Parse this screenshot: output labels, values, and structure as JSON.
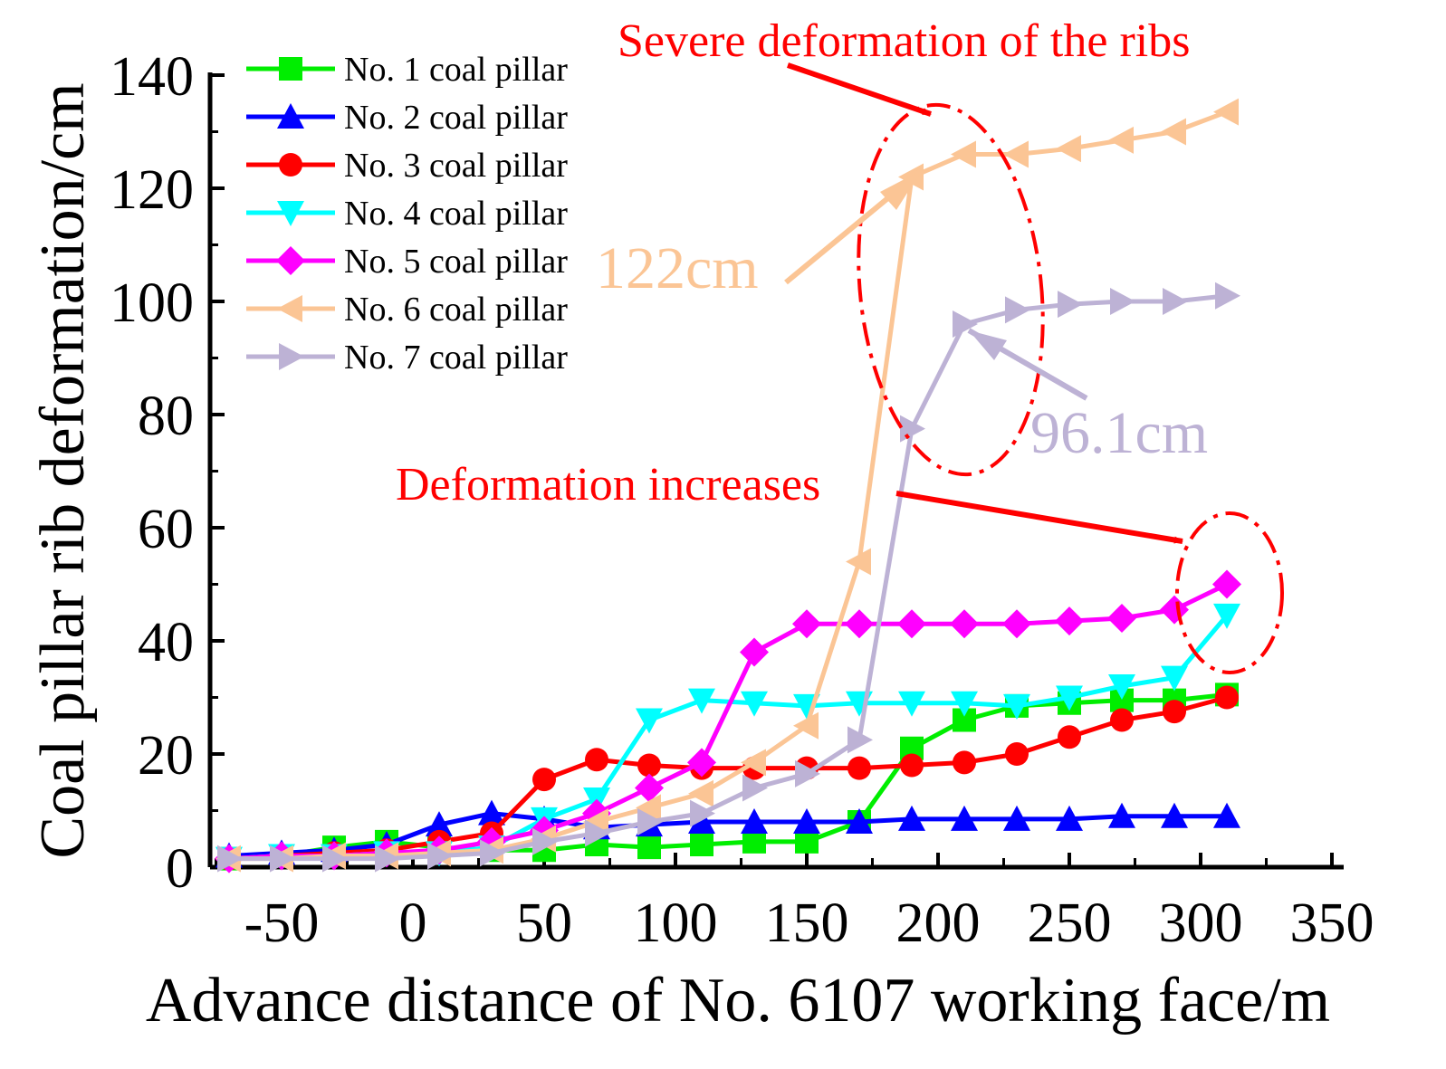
{
  "chart_data": {
    "type": "line",
    "title": "",
    "xlabel": "Advance distance of No. 6107 working face/m",
    "ylabel": "Coal pillar rib deformation/cm",
    "xlim": [
      -80,
      350
    ],
    "ylim": [
      0,
      140
    ],
    "xticks": [
      -50,
      0,
      50,
      100,
      150,
      200,
      250,
      300,
      350
    ],
    "yticks": [
      0,
      20,
      40,
      60,
      80,
      100,
      120,
      140
    ],
    "x": [
      -70,
      -50,
      -30,
      -10,
      10,
      30,
      50,
      70,
      90,
      110,
      130,
      150,
      170,
      190,
      210,
      230,
      250,
      270,
      290,
      310
    ],
    "legend_position": "top-left",
    "series": [
      {
        "name": "No. 1 coal pillar",
        "color": "#00ee00",
        "marker": "square",
        "values": [
          1.5,
          2,
          3.5,
          4.5,
          3.5,
          3,
          3,
          4,
          3.5,
          4,
          4.5,
          4.5,
          8,
          21,
          26,
          28.5,
          29,
          29.5,
          29.5,
          30.5
        ]
      },
      {
        "name": "No. 2 coal pillar",
        "color": "#0000ff",
        "marker": "triangle-up",
        "values": [
          2,
          2.5,
          3,
          4,
          7.5,
          9.5,
          8.5,
          7,
          7.5,
          8,
          8,
          8,
          8,
          8.5,
          8.5,
          8.5,
          8.5,
          9,
          9,
          9
        ]
      },
      {
        "name": "No. 3 coal pillar",
        "color": "#ff0000",
        "marker": "circle",
        "values": [
          1.5,
          2,
          2.5,
          3,
          4.5,
          6,
          15.5,
          19,
          18,
          17.5,
          17.5,
          17.5,
          17.5,
          18,
          18.5,
          20,
          23,
          26,
          27.5,
          30
        ]
      },
      {
        "name": "No. 4 coal pillar",
        "color": "#00ffff",
        "marker": "triangle-down",
        "values": [
          1.5,
          2,
          2,
          2.5,
          2.5,
          3.5,
          8.5,
          12,
          26,
          29.5,
          29,
          28.5,
          29,
          29,
          29,
          28.5,
          30,
          32,
          33.5,
          44.5
        ]
      },
      {
        "name": "No. 5 coal pillar",
        "color": "#ff00ff",
        "marker": "diamond",
        "values": [
          1.5,
          2,
          2,
          2.5,
          3,
          4.5,
          6.5,
          9.5,
          14,
          18.5,
          38,
          43,
          43,
          43,
          43,
          43,
          43.5,
          44,
          45.5,
          50
        ]
      },
      {
        "name": "No. 6 coal pillar",
        "color": "#fbc595",
        "marker": "triangle-left",
        "values": [
          1.5,
          1.5,
          2,
          2,
          2.5,
          3,
          5,
          8,
          10.5,
          13,
          18.5,
          25,
          54,
          122,
          126,
          126,
          127,
          128.5,
          130,
          133.5
        ]
      },
      {
        "name": "No. 7 coal pillar",
        "color": "#bdb2d5",
        "marker": "triangle-right",
        "values": [
          1.5,
          1.5,
          1.5,
          1.5,
          2,
          2.5,
          4.5,
          6,
          8,
          9.5,
          14,
          16.5,
          22.5,
          77.5,
          96,
          98.5,
          99.5,
          100,
          100,
          101
        ]
      }
    ],
    "annotations": [
      {
        "text": "Severe deformation of the ribs",
        "color": "#ff0000",
        "target_x": 200,
        "target_y": 125
      },
      {
        "text": "122cm",
        "color": "#fbc595",
        "target_x": 190,
        "target_y": 122
      },
      {
        "text": "96.1cm",
        "color": "#bdb2d5",
        "target_x": 210,
        "target_y": 96
      },
      {
        "text": "Deformation increases",
        "color": "#ff0000",
        "target_x": 305,
        "target_y": 57
      }
    ]
  }
}
